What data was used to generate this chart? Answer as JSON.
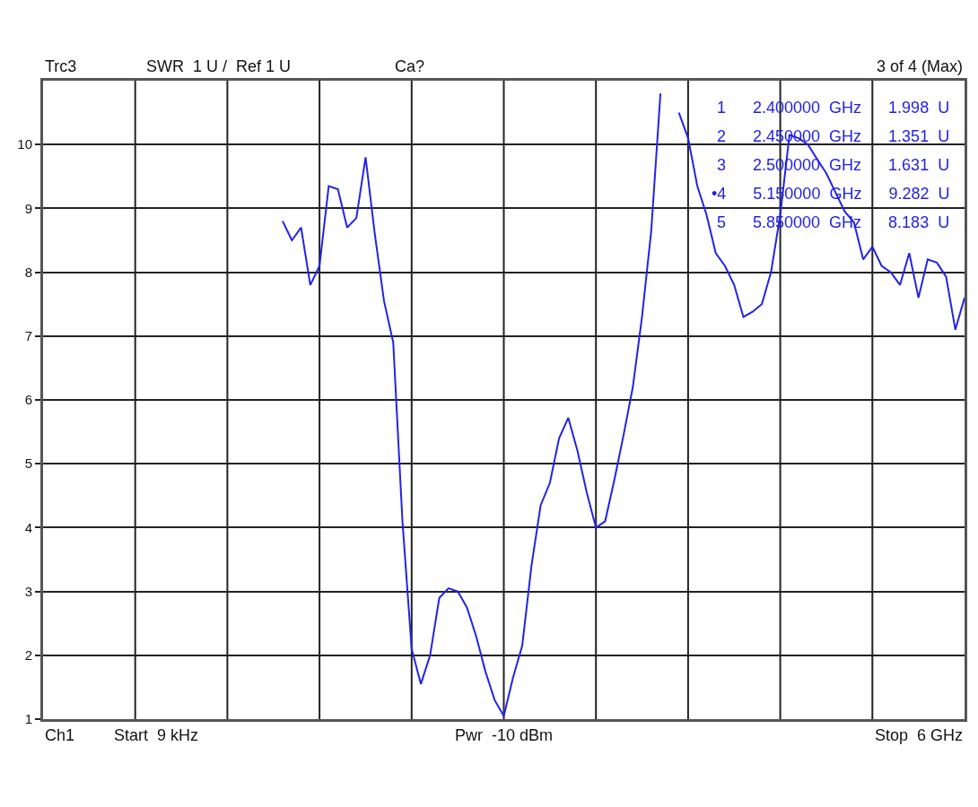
{
  "chart_data": {
    "type": "line",
    "annotations": [
      "Trc3",
      "SWR  1 U /  Ref 1 U",
      "Ca?",
      "3 of 4 (Max)",
      "Ch1",
      "Start  9 kHz",
      "Pwr  -10 dBm",
      "Stop  6 GHz",
      "1      2.400000  GHz      1.998  U",
      "2      2.450000  GHz      1.351  U",
      "3      2.500000  GHz      1.631  U",
      "•4      5.150000  GHz      9.282  U",
      "5      5.850000  GHz      8.183  U"
    ],
    "categories": [
      null,
      null,
      null,
      null,
      null,
      null,
      null,
      null,
      null,
      null,
      null,
      null,
      null,
      null,
      null,
      null,
      null,
      null,
      null,
      null,
      null,
      null,
      null,
      null,
      null,
      null,
      null,
      null,
      null,
      null,
      null,
      null,
      null,
      null,
      null,
      null,
      null,
      null,
      null,
      null,
      null,
      null,
      null,
      null,
      null,
      null,
      null,
      null,
      null,
      null,
      null,
      null,
      null,
      null,
      null,
      null,
      null,
      null,
      null,
      null,
      null,
      null,
      null,
      null,
      null,
      null,
      null,
      null,
      null,
      null,
      null,
      null,
      null,
      null,
      null,
      null,
      null,
      null,
      null,
      null,
      null,
      null,
      null,
      null,
      null,
      null,
      null,
      null,
      null,
      null,
      null,
      null,
      null,
      null,
      null,
      null,
      null,
      null,
      null,
      null,
      null
    ],
    "series": [
      {
        "color": "#2323e6",
        "values": [
          null,
          null,
          null,
          null,
          null,
          null,
          null,
          null,
          null,
          null,
          null,
          null,
          null,
          null,
          null,
          null,
          null,
          null,
          null,
          null,
          null,
          null,
          null,
          null,
          null,
          null,
          8.8,
          8.5,
          8.7,
          7.8,
          8.1,
          9.35,
          9.3,
          8.7,
          8.85,
          9.8,
          8.6,
          7.55,
          6.9,
          4.1,
          2.1,
          1.55,
          2.0,
          2.9,
          3.05,
          3.0,
          2.75,
          2.3,
          1.75,
          1.3,
          1.05,
          1.65,
          2.15,
          3.4,
          4.35,
          4.7,
          5.4,
          5.72,
          5.2,
          4.55,
          4.0,
          4.1,
          4.75,
          5.45,
          6.2,
          7.3,
          8.65,
          10.8,
          null,
          10.5,
          10.1,
          9.35,
          8.9,
          8.3,
          8.1,
          7.8,
          7.3,
          7.38,
          7.5,
          8.0,
          8.9,
          10.15,
          10.1,
          10.0,
          9.77,
          9.55,
          9.25,
          8.95,
          8.78,
          8.2,
          8.4,
          8.1,
          8.0,
          7.8,
          8.3,
          7.6,
          8.2,
          8.15,
          7.93,
          7.1,
          7.6
        ]
      }
    ],
    "ylim": [
      1,
      11
    ],
    "yticks": [
      1,
      2,
      3,
      4,
      5,
      6,
      7,
      8,
      9,
      10
    ],
    "tick_labels": "y",
    "grid": true,
    "line_style": "solid",
    "marker": "none"
  }
}
